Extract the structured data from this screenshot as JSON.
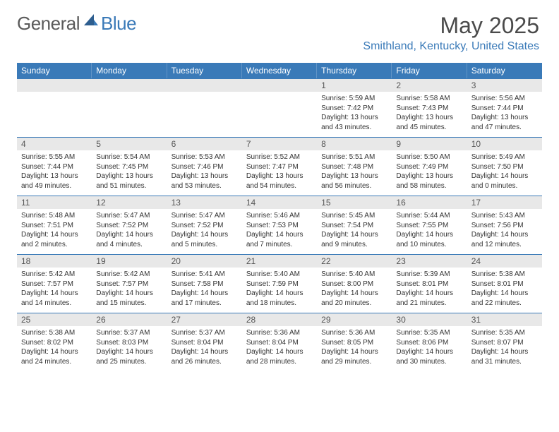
{
  "logo": {
    "text1": "General",
    "text2": "Blue"
  },
  "title": "May 2025",
  "location": "Smithland, Kentucky, United States",
  "colors": {
    "header_bg": "#3a7ab8",
    "header_text": "#ffffff",
    "daynum_bg": "#e8e8e8",
    "brand_gray": "#5a5a5a",
    "brand_blue": "#3a7ab8"
  },
  "day_names": [
    "Sunday",
    "Monday",
    "Tuesday",
    "Wednesday",
    "Thursday",
    "Friday",
    "Saturday"
  ],
  "weeks": [
    [
      {
        "n": "",
        "sunrise": "",
        "sunset": "",
        "daylight": ""
      },
      {
        "n": "",
        "sunrise": "",
        "sunset": "",
        "daylight": ""
      },
      {
        "n": "",
        "sunrise": "",
        "sunset": "",
        "daylight": ""
      },
      {
        "n": "",
        "sunrise": "",
        "sunset": "",
        "daylight": ""
      },
      {
        "n": "1",
        "sunrise": "Sunrise: 5:59 AM",
        "sunset": "Sunset: 7:42 PM",
        "daylight": "Daylight: 13 hours and 43 minutes."
      },
      {
        "n": "2",
        "sunrise": "Sunrise: 5:58 AM",
        "sunset": "Sunset: 7:43 PM",
        "daylight": "Daylight: 13 hours and 45 minutes."
      },
      {
        "n": "3",
        "sunrise": "Sunrise: 5:56 AM",
        "sunset": "Sunset: 7:44 PM",
        "daylight": "Daylight: 13 hours and 47 minutes."
      }
    ],
    [
      {
        "n": "4",
        "sunrise": "Sunrise: 5:55 AM",
        "sunset": "Sunset: 7:44 PM",
        "daylight": "Daylight: 13 hours and 49 minutes."
      },
      {
        "n": "5",
        "sunrise": "Sunrise: 5:54 AM",
        "sunset": "Sunset: 7:45 PM",
        "daylight": "Daylight: 13 hours and 51 minutes."
      },
      {
        "n": "6",
        "sunrise": "Sunrise: 5:53 AM",
        "sunset": "Sunset: 7:46 PM",
        "daylight": "Daylight: 13 hours and 53 minutes."
      },
      {
        "n": "7",
        "sunrise": "Sunrise: 5:52 AM",
        "sunset": "Sunset: 7:47 PM",
        "daylight": "Daylight: 13 hours and 54 minutes."
      },
      {
        "n": "8",
        "sunrise": "Sunrise: 5:51 AM",
        "sunset": "Sunset: 7:48 PM",
        "daylight": "Daylight: 13 hours and 56 minutes."
      },
      {
        "n": "9",
        "sunrise": "Sunrise: 5:50 AM",
        "sunset": "Sunset: 7:49 PM",
        "daylight": "Daylight: 13 hours and 58 minutes."
      },
      {
        "n": "10",
        "sunrise": "Sunrise: 5:49 AM",
        "sunset": "Sunset: 7:50 PM",
        "daylight": "Daylight: 14 hours and 0 minutes."
      }
    ],
    [
      {
        "n": "11",
        "sunrise": "Sunrise: 5:48 AM",
        "sunset": "Sunset: 7:51 PM",
        "daylight": "Daylight: 14 hours and 2 minutes."
      },
      {
        "n": "12",
        "sunrise": "Sunrise: 5:47 AM",
        "sunset": "Sunset: 7:52 PM",
        "daylight": "Daylight: 14 hours and 4 minutes."
      },
      {
        "n": "13",
        "sunrise": "Sunrise: 5:47 AM",
        "sunset": "Sunset: 7:52 PM",
        "daylight": "Daylight: 14 hours and 5 minutes."
      },
      {
        "n": "14",
        "sunrise": "Sunrise: 5:46 AM",
        "sunset": "Sunset: 7:53 PM",
        "daylight": "Daylight: 14 hours and 7 minutes."
      },
      {
        "n": "15",
        "sunrise": "Sunrise: 5:45 AM",
        "sunset": "Sunset: 7:54 PM",
        "daylight": "Daylight: 14 hours and 9 minutes."
      },
      {
        "n": "16",
        "sunrise": "Sunrise: 5:44 AM",
        "sunset": "Sunset: 7:55 PM",
        "daylight": "Daylight: 14 hours and 10 minutes."
      },
      {
        "n": "17",
        "sunrise": "Sunrise: 5:43 AM",
        "sunset": "Sunset: 7:56 PM",
        "daylight": "Daylight: 14 hours and 12 minutes."
      }
    ],
    [
      {
        "n": "18",
        "sunrise": "Sunrise: 5:42 AM",
        "sunset": "Sunset: 7:57 PM",
        "daylight": "Daylight: 14 hours and 14 minutes."
      },
      {
        "n": "19",
        "sunrise": "Sunrise: 5:42 AM",
        "sunset": "Sunset: 7:57 PM",
        "daylight": "Daylight: 14 hours and 15 minutes."
      },
      {
        "n": "20",
        "sunrise": "Sunrise: 5:41 AM",
        "sunset": "Sunset: 7:58 PM",
        "daylight": "Daylight: 14 hours and 17 minutes."
      },
      {
        "n": "21",
        "sunrise": "Sunrise: 5:40 AM",
        "sunset": "Sunset: 7:59 PM",
        "daylight": "Daylight: 14 hours and 18 minutes."
      },
      {
        "n": "22",
        "sunrise": "Sunrise: 5:40 AM",
        "sunset": "Sunset: 8:00 PM",
        "daylight": "Daylight: 14 hours and 20 minutes."
      },
      {
        "n": "23",
        "sunrise": "Sunrise: 5:39 AM",
        "sunset": "Sunset: 8:01 PM",
        "daylight": "Daylight: 14 hours and 21 minutes."
      },
      {
        "n": "24",
        "sunrise": "Sunrise: 5:38 AM",
        "sunset": "Sunset: 8:01 PM",
        "daylight": "Daylight: 14 hours and 22 minutes."
      }
    ],
    [
      {
        "n": "25",
        "sunrise": "Sunrise: 5:38 AM",
        "sunset": "Sunset: 8:02 PM",
        "daylight": "Daylight: 14 hours and 24 minutes."
      },
      {
        "n": "26",
        "sunrise": "Sunrise: 5:37 AM",
        "sunset": "Sunset: 8:03 PM",
        "daylight": "Daylight: 14 hours and 25 minutes."
      },
      {
        "n": "27",
        "sunrise": "Sunrise: 5:37 AM",
        "sunset": "Sunset: 8:04 PM",
        "daylight": "Daylight: 14 hours and 26 minutes."
      },
      {
        "n": "28",
        "sunrise": "Sunrise: 5:36 AM",
        "sunset": "Sunset: 8:04 PM",
        "daylight": "Daylight: 14 hours and 28 minutes."
      },
      {
        "n": "29",
        "sunrise": "Sunrise: 5:36 AM",
        "sunset": "Sunset: 8:05 PM",
        "daylight": "Daylight: 14 hours and 29 minutes."
      },
      {
        "n": "30",
        "sunrise": "Sunrise: 5:35 AM",
        "sunset": "Sunset: 8:06 PM",
        "daylight": "Daylight: 14 hours and 30 minutes."
      },
      {
        "n": "31",
        "sunrise": "Sunrise: 5:35 AM",
        "sunset": "Sunset: 8:07 PM",
        "daylight": "Daylight: 14 hours and 31 minutes."
      }
    ]
  ]
}
